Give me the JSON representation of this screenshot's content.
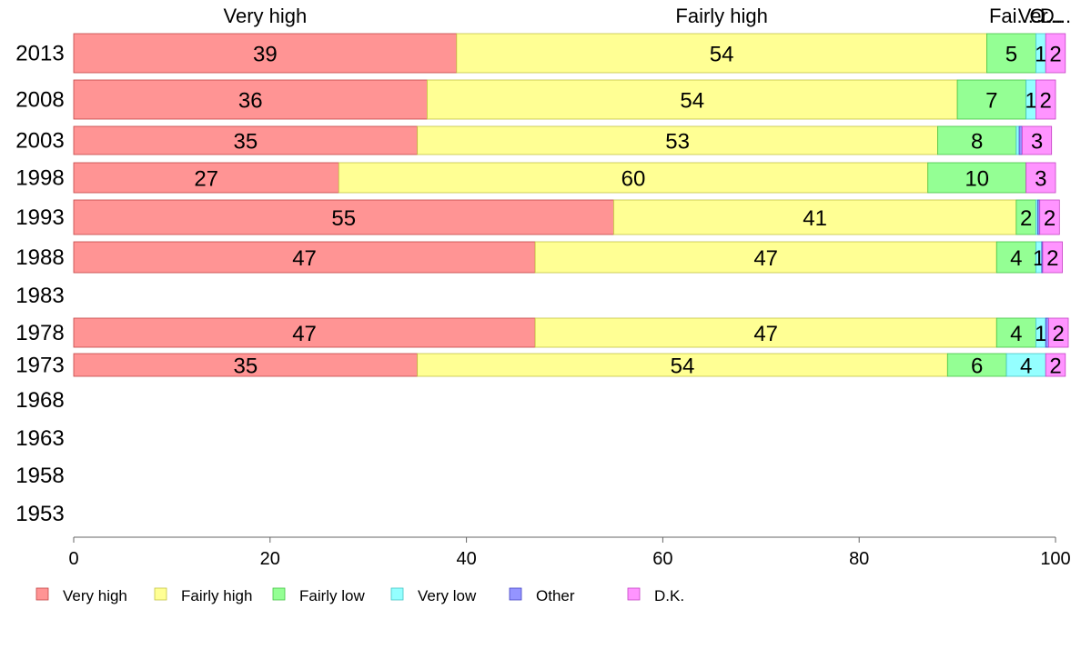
{
  "chart_data": {
    "type": "bar",
    "orientation": "horizontal",
    "stacked": true,
    "categories": [
      "2013",
      "2008",
      "2003",
      "1998",
      "1993",
      "1988",
      "1983",
      "1978",
      "1973",
      "1968",
      "1963",
      "1958",
      "1953"
    ],
    "series": [
      {
        "name": "Very high",
        "color": "#ff9494",
        "values": [
          39,
          36,
          35,
          27,
          55,
          47,
          null,
          47,
          35,
          null,
          null,
          null,
          null
        ]
      },
      {
        "name": "Fairly high",
        "color": "#ffff94",
        "values": [
          54,
          54,
          53,
          60,
          41,
          47,
          null,
          47,
          54,
          null,
          null,
          null,
          null
        ]
      },
      {
        "name": "Fairly low",
        "color": "#94ff94",
        "values": [
          5,
          7,
          8,
          10,
          2,
          4,
          null,
          4,
          6,
          null,
          null,
          null,
          null
        ]
      },
      {
        "name": "Very low",
        "color": "#94ffff",
        "values": [
          1,
          1,
          0.3,
          0,
          0.2,
          0.6,
          null,
          1,
          4,
          null,
          null,
          null,
          null
        ]
      },
      {
        "name": "Other",
        "color": "#9494ff",
        "values": [
          0,
          0,
          0.3,
          0,
          0.2,
          0.1,
          null,
          0.3,
          0,
          null,
          null,
          null,
          null
        ]
      },
      {
        "name": "D.K.",
        "color": "#ff94ff",
        "values": [
          2,
          2,
          3,
          3,
          2,
          2,
          null,
          2,
          2,
          null,
          null,
          null,
          null
        ]
      }
    ],
    "segment_labels": [
      [
        "39",
        "54",
        "5",
        "1",
        "",
        "2"
      ],
      [
        "36",
        "54",
        "7",
        "1",
        "",
        "2"
      ],
      [
        "35",
        "53",
        "8",
        "",
        "",
        "3"
      ],
      [
        "27",
        "60",
        "10",
        "",
        "",
        "3"
      ],
      [
        "55",
        "41",
        "2",
        "",
        "",
        "2"
      ],
      [
        "47",
        "47",
        "4",
        "1",
        "",
        "2"
      ],
      [
        "",
        "",
        "",
        "",
        "",
        ""
      ],
      [
        "47",
        "47",
        "4",
        "1",
        "",
        "2"
      ],
      [
        "35",
        "54",
        "6",
        "4",
        "",
        "2"
      ],
      [
        "",
        "",
        "",
        "",
        "",
        ""
      ],
      [
        "",
        "",
        "",
        "",
        "",
        ""
      ],
      [
        "",
        "",
        "",
        "",
        "",
        ""
      ],
      [
        "",
        "",
        "",
        "",
        "",
        ""
      ]
    ],
    "top_labels": [
      "Very high",
      "Fairly high",
      "Fai...",
      "Ver...",
      "O...",
      "D..."
    ],
    "xlim": [
      0,
      100
    ],
    "xticks": [
      "0",
      "20",
      "40",
      "60",
      "80",
      "100"
    ],
    "xlabel": "",
    "ylabel": "",
    "grid": false,
    "legend": {
      "position": "bottom",
      "entries": [
        "Very high",
        "Fairly high",
        "Fairly low",
        "Very low",
        "Other",
        "D.K."
      ]
    }
  }
}
